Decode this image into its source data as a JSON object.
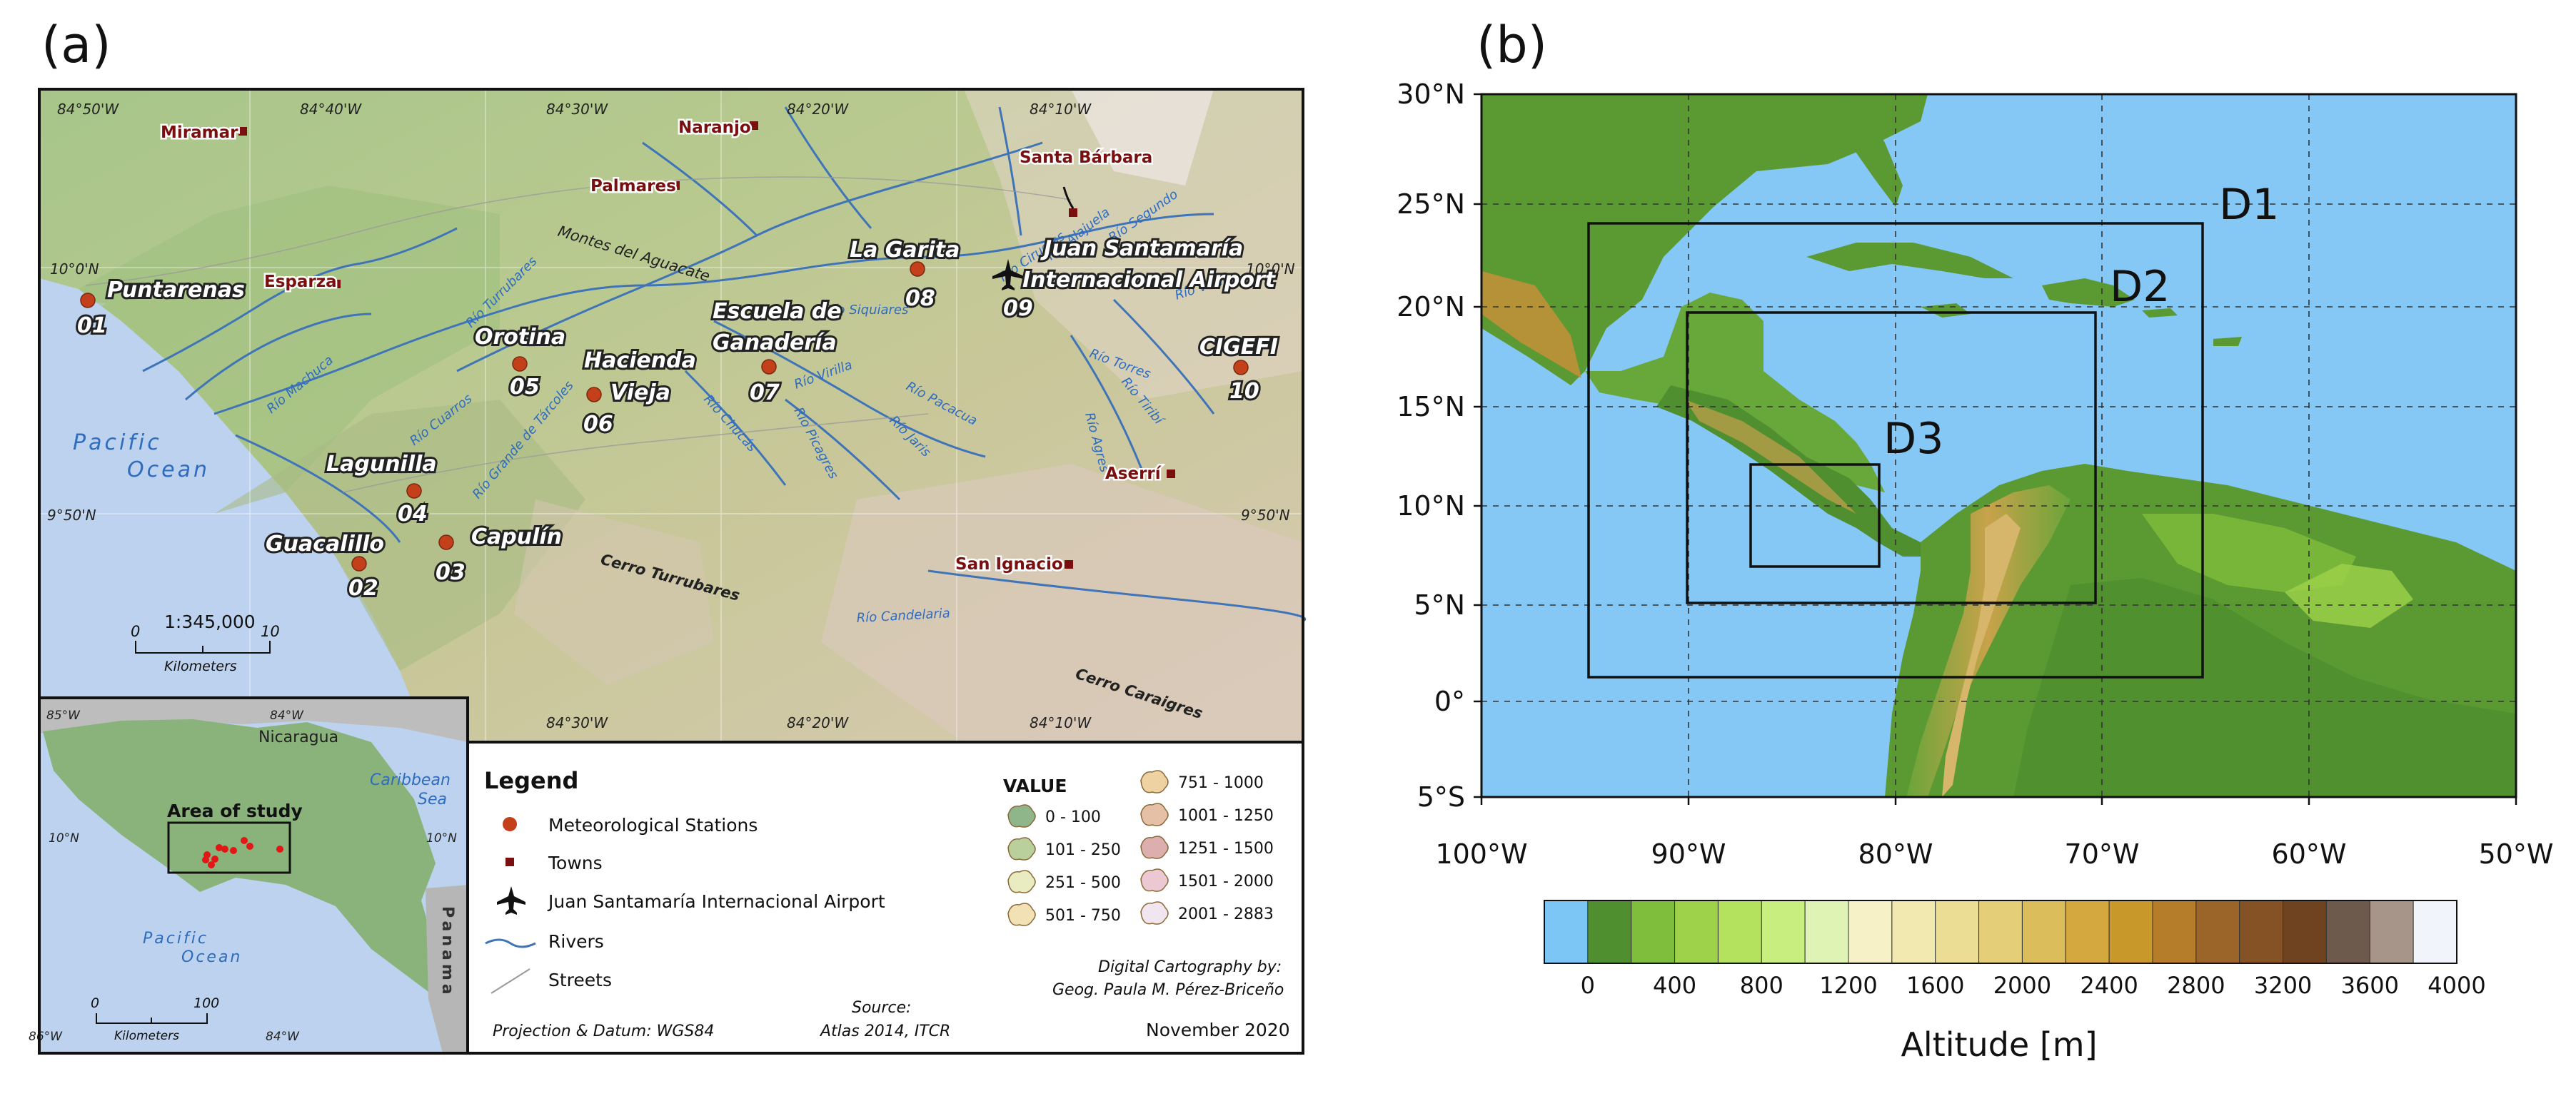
{
  "panel_a": {
    "label": "(a)",
    "map": {
      "ocean_name": [
        "Pacific",
        "Ocean"
      ],
      "graticule_top": [
        "84°50'W",
        "84°40'W",
        "84°30'W",
        "84°20'W",
        "84°10'W"
      ],
      "graticule_bottom": [
        "84°30'W",
        "84°20'W",
        "84°10'W"
      ],
      "lat_left": [
        "10°0'N",
        "9°50'N"
      ],
      "lat_right": [
        "10°0'N",
        "9°50'N"
      ],
      "towns": [
        "Miramar",
        "Naranjo",
        "Palmares",
        "Santa Bárbara",
        "Esparza",
        "Aserrí",
        "San Ignacio"
      ],
      "stations": [
        {
          "name": "Puntarenas",
          "id": "01"
        },
        {
          "name": "Guacalillo",
          "id": "02"
        },
        {
          "name": "Capulín",
          "id": "03"
        },
        {
          "name": "Lagunilla",
          "id": "04"
        },
        {
          "name": "Orotina",
          "id": "05"
        },
        {
          "name": "Hacienda Vieja",
          "name_lines": [
            "Hacienda",
            "Vieja"
          ],
          "id": "06"
        },
        {
          "name": "Escuela de Ganadería",
          "name_lines": [
            "Escuela de",
            "Ganadería"
          ],
          "id": "07"
        },
        {
          "name": "La Garita",
          "id": "08"
        },
        {
          "name": "Juan Santamaría Internacional Airport",
          "name_lines": [
            "Juan Santamaría",
            "Internacional Airport"
          ],
          "id": "09"
        },
        {
          "name": "CIGEFI",
          "id": "10"
        }
      ],
      "rivers": [
        "Río Machuca",
        "Río Cuarros",
        "Río Turrubares",
        "Río Grande de Tárcoles",
        "Río Siquiares",
        "Río Ciruelas",
        "Río Alajuela",
        "Río Segundo",
        "Río Virilla",
        "Río Torres",
        "Río Tiribí",
        "Río Agres",
        "Río Virilla",
        "Río Pacacua",
        "Río Jaris",
        "Río Chucás",
        "Río Picagres",
        "Río Candelaria"
      ],
      "mountains": [
        "Montes del Aguacate",
        "Cerro Turrubares",
        "Cerro Caraigres"
      ],
      "scale": {
        "ratio": "1:345,000",
        "start": "0",
        "end": "10",
        "unit": "Kilometers"
      }
    },
    "inset": {
      "lon_top": [
        "85°W",
        "84°W"
      ],
      "lon_bottom": [
        "86°W",
        "84°W"
      ],
      "lat": [
        "10°N",
        "10°N"
      ],
      "countries": [
        "Nicaragua",
        "Panama"
      ],
      "sea": [
        "Caribbean",
        "Sea"
      ],
      "ocean": [
        "Pacific",
        "Ocean"
      ],
      "study_label": "Area of study",
      "scale": {
        "start": "0",
        "end": "100",
        "unit": "Kilometers"
      }
    },
    "legend": {
      "title": "Legend",
      "items": [
        "Meteorological Stations",
        "Towns",
        "Juan Santamaría Internacional Airport",
        "Rivers",
        "Streets"
      ],
      "value_title": "VALUE",
      "value_classes": [
        "0 - 100",
        "101 - 250",
        "251 - 500",
        "501 - 750",
        "751 - 1000",
        "1001 - 1250",
        "1251 - 1500",
        "1501 - 2000",
        "2001 - 2883"
      ],
      "value_colors": [
        "#8fb58a",
        "#b9cf9c",
        "#e8ecc0",
        "#f1e1b5",
        "#efd2a2",
        "#e6c0a6",
        "#dcaeae",
        "#ecc9d2",
        "#f1e6ef"
      ],
      "credit": [
        "Digital Cartography by:",
        "Geog. Paula M. Pérez-Briceño"
      ],
      "projection": "Projection & Datum: WGS84",
      "source": [
        "Source:",
        "Atlas 2014, ITCR"
      ],
      "date": "November 2020"
    }
  },
  "panel_b": {
    "label": "(b)",
    "lat_ticks": [
      "30°N",
      "25°N",
      "20°N",
      "15°N",
      "10°N",
      "5°N",
      "0°",
      "5°S"
    ],
    "lon_ticks": [
      "100°W",
      "90°W",
      "80°W",
      "70°W",
      "60°W",
      "50°W"
    ],
    "domains": [
      "D1",
      "D2",
      "D3"
    ],
    "colorbar": {
      "ticks": [
        "0",
        "400",
        "800",
        "1200",
        "1600",
        "2000",
        "2400",
        "2800",
        "3200",
        "3600",
        "4000"
      ],
      "colors": [
        "#7cc6f5",
        "#4f8f2f",
        "#7fbd3c",
        "#9ed24a",
        "#b5e25e",
        "#c8ee80",
        "#dff3b4",
        "#f6f1c6",
        "#f2e9b0",
        "#ecdd95",
        "#e4ce78",
        "#dcbd5c",
        "#d4a83f",
        "#c9982a",
        "#b57d2a",
        "#9b6428",
        "#855225",
        "#6f4220",
        "#6e5a4c",
        "#a7958a",
        "#f2f4fb"
      ],
      "label": "Altitude [m]"
    }
  }
}
